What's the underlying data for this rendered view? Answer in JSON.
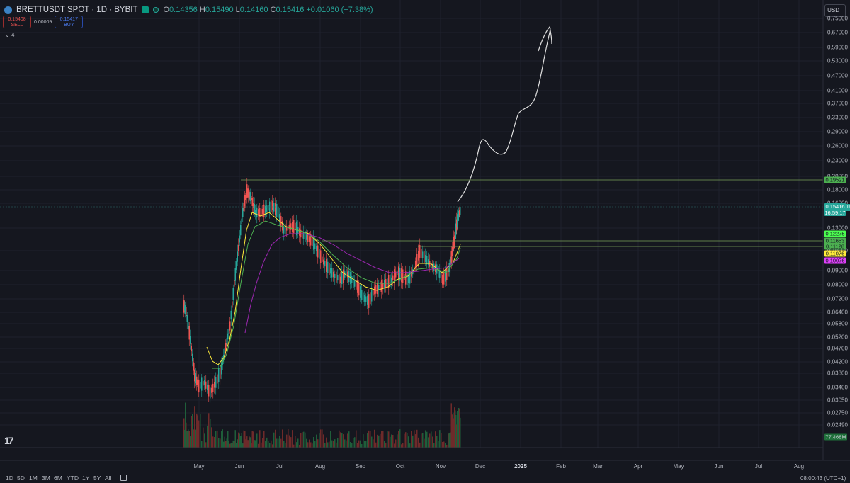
{
  "header": {
    "symbol_title": "BRETTUSDT SPOT · 1D · BYBIT",
    "ohlc": {
      "o_key": "O",
      "o_val": "0.14356",
      "h_key": "H",
      "h_val": "0.15490",
      "l_key": "L",
      "l_val": "0.14160",
      "c_key": "C",
      "c_val": "0.15416",
      "change": "+0.01060 (+7.38%)"
    },
    "sell_price": "0.15408",
    "sell_label": "SELL",
    "spread": "0.00009",
    "buy_price": "0.15417",
    "buy_label": "BUY",
    "indicators_toggle": "4",
    "currency": "USDT"
  },
  "price_axis": {
    "labels": [
      "0.75000",
      "0.67000",
      "0.59000",
      "0.53000",
      "0.47000",
      "0.41000",
      "0.37000",
      "0.33000",
      "0.29000",
      "0.26000",
      "0.23000",
      "0.20000",
      "0.18000",
      "0.16000",
      "0.13000",
      "0.10000",
      "0.09000",
      "0.08000",
      "0.07200",
      "0.06400",
      "0.05800",
      "0.05200",
      "0.04700",
      "0.04200",
      "0.03800",
      "0.03400",
      "0.03050",
      "0.02750",
      "0.02490"
    ],
    "tags": [
      {
        "text": "0.19521",
        "color": "#4caf50"
      },
      {
        "text": "0.12275",
        "color": "#4cff50"
      },
      {
        "text": "0.11653",
        "color": "#4caf50"
      },
      {
        "text": "0.11128",
        "color": "#4caf50"
      },
      {
        "text": "0.11076",
        "color": "#ffeb3b"
      },
      {
        "text": "0.10076",
        "color": "#e040fb"
      }
    ],
    "last_price": "0.15416",
    "countdown": "16:59:17",
    "symbol_label": "BRETTUSDT",
    "volume_tag": "77.468M"
  },
  "time_axis": {
    "labels": [
      {
        "text": "May",
        "bold": false
      },
      {
        "text": "Jun",
        "bold": false
      },
      {
        "text": "Jul",
        "bold": false
      },
      {
        "text": "Aug",
        "bold": false
      },
      {
        "text": "Sep",
        "bold": false
      },
      {
        "text": "Oct",
        "bold": false
      },
      {
        "text": "Nov",
        "bold": false
      },
      {
        "text": "Dec",
        "bold": false
      },
      {
        "text": "2025",
        "bold": true
      },
      {
        "text": "Feb",
        "bold": false
      },
      {
        "text": "Mar",
        "bold": false
      },
      {
        "text": "Apr",
        "bold": false
      },
      {
        "text": "May",
        "bold": false
      },
      {
        "text": "Jun",
        "bold": false
      },
      {
        "text": "Jul",
        "bold": false
      },
      {
        "text": "Aug",
        "bold": false
      }
    ]
  },
  "footer": {
    "timeframes": [
      "1D",
      "5D",
      "1M",
      "3M",
      "6M",
      "YTD",
      "1Y",
      "5Y",
      "All"
    ],
    "clock": "08:00:43 (UTC+1)"
  },
  "colors": {
    "up": "#26a69a",
    "down": "#ef5350",
    "ma_fast": "#ffeb3b",
    "ma_mid": "#4caf50",
    "ma_slow": "#9c27b0",
    "drawing": "#e0e0e0",
    "level": "#6b8f4e"
  },
  "icons": [
    "coin-icon",
    "flag-icon",
    "status-dot-icon",
    "chevron-down-icon",
    "calendar-icon",
    "tradingview-logo"
  ]
}
